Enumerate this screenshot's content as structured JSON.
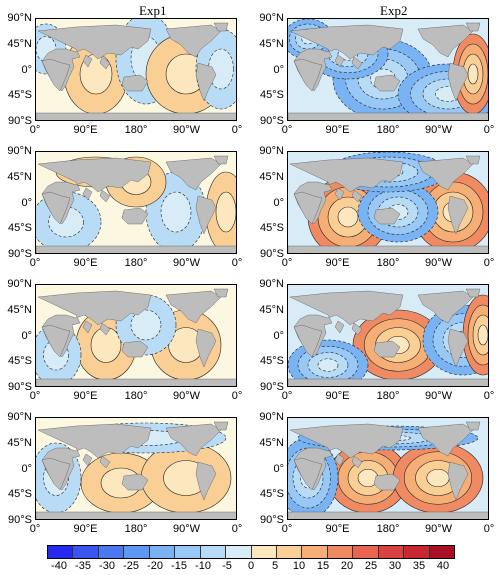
{
  "columns": [
    "Exp1",
    "Exp2"
  ],
  "y_ticks": [
    "90°N",
    "45°N",
    "0°",
    "45°S",
    "90°S"
  ],
  "x_ticks": [
    "0°",
    "90°E",
    "180°",
    "90°W",
    "0°"
  ],
  "colorbar": {
    "labels": [
      "-40",
      "-35",
      "-30",
      "-25",
      "-20",
      "-15",
      "-10",
      "-5",
      "0",
      "5",
      "10",
      "15",
      "20",
      "25",
      "30",
      "35",
      "40"
    ],
    "colors": [
      "#2828f0",
      "#3a55f0",
      "#4a78f0",
      "#5e98f3",
      "#79b3f3",
      "#98c8f5",
      "#b8dcf6",
      "#d8ecf8",
      "#fbf7e1",
      "#fce7bf",
      "#f9cf95",
      "#f5ae76",
      "#ef8a62",
      "#e76551",
      "#db4040",
      "#c82632",
      "#a80f24"
    ]
  },
  "icons": {
    "land": "continent-shape",
    "contour": "dashed-contour-line"
  }
}
